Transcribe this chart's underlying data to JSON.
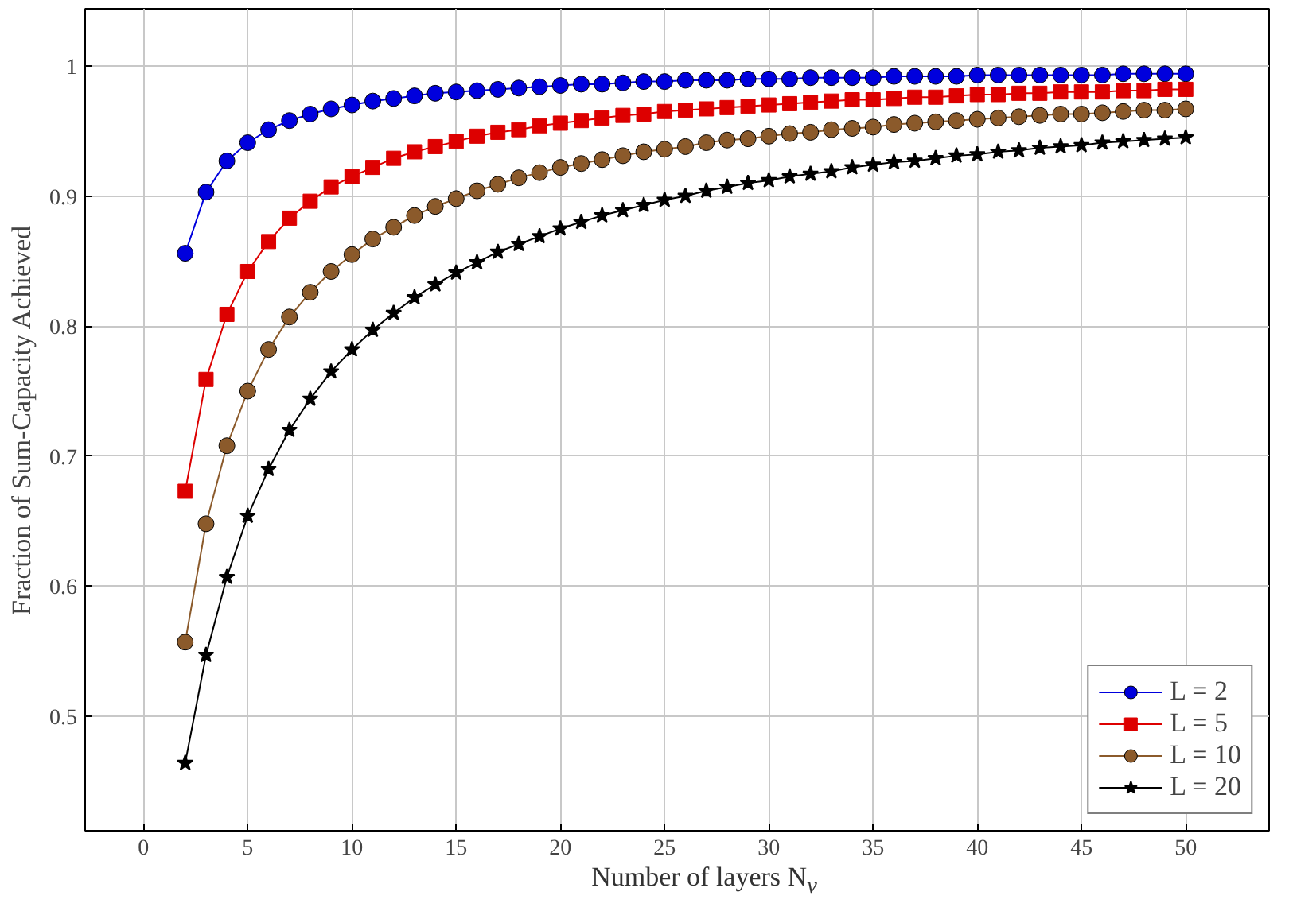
{
  "chart_data": {
    "type": "line",
    "xlabel": "Number of layers N$_{v}$",
    "ylabel": "Fraction of Sum-Capacity Achieved",
    "x": [
      2,
      3,
      4,
      5,
      6,
      7,
      8,
      9,
      10,
      11,
      12,
      13,
      14,
      15,
      16,
      17,
      18,
      19,
      20,
      21,
      22,
      23,
      24,
      25,
      26,
      27,
      28,
      29,
      30,
      31,
      32,
      33,
      34,
      35,
      36,
      37,
      38,
      39,
      40,
      41,
      42,
      43,
      44,
      45,
      46,
      47,
      48,
      49,
      50
    ],
    "xlim": [
      -2.8,
      54
    ],
    "xticks": [
      0,
      5,
      10,
      15,
      20,
      25,
      30,
      35,
      40,
      45,
      50
    ],
    "ylim": [
      0.412,
      1.044
    ],
    "yticks": [
      0.5,
      0.6,
      0.7,
      0.8,
      0.9,
      1
    ],
    "grid": true,
    "legend": "bottom right",
    "series": [
      {
        "name": "L = 2",
        "color": "#0000dd",
        "marker": "circle",
        "values": [
          0.856,
          0.903,
          0.927,
          0.941,
          0.951,
          0.958,
          0.963,
          0.967,
          0.97,
          0.973,
          0.975,
          0.977,
          0.979,
          0.98,
          0.981,
          0.982,
          0.983,
          0.984,
          0.985,
          0.986,
          0.986,
          0.987,
          0.988,
          0.988,
          0.989,
          0.989,
          0.989,
          0.99,
          0.99,
          0.99,
          0.991,
          0.991,
          0.991,
          0.991,
          0.992,
          0.992,
          0.992,
          0.992,
          0.993,
          0.993,
          0.993,
          0.993,
          0.993,
          0.993,
          0.993,
          0.994,
          0.994,
          0.994,
          0.994
        ]
      },
      {
        "name": "L = 5",
        "color": "#dd0000",
        "marker": "square",
        "values": [
          0.673,
          0.759,
          0.809,
          0.842,
          0.865,
          0.883,
          0.896,
          0.907,
          0.915,
          0.922,
          0.929,
          0.934,
          0.938,
          0.942,
          0.946,
          0.949,
          0.951,
          0.954,
          0.956,
          0.958,
          0.96,
          0.962,
          0.963,
          0.965,
          0.966,
          0.967,
          0.968,
          0.969,
          0.97,
          0.971,
          0.972,
          0.973,
          0.974,
          0.974,
          0.975,
          0.976,
          0.976,
          0.977,
          0.978,
          0.978,
          0.979,
          0.979,
          0.98,
          0.98,
          0.98,
          0.981,
          0.981,
          0.982,
          0.982
        ]
      },
      {
        "name": "L = 10",
        "color": "#8b5a2b",
        "marker": "circle",
        "values": [
          0.557,
          0.648,
          0.708,
          0.75,
          0.782,
          0.807,
          0.826,
          0.842,
          0.855,
          0.867,
          0.876,
          0.885,
          0.892,
          0.898,
          0.904,
          0.909,
          0.914,
          0.918,
          0.922,
          0.925,
          0.928,
          0.931,
          0.934,
          0.936,
          0.938,
          0.941,
          0.943,
          0.944,
          0.946,
          0.948,
          0.949,
          0.951,
          0.952,
          0.953,
          0.955,
          0.956,
          0.957,
          0.958,
          0.959,
          0.96,
          0.961,
          0.962,
          0.963,
          0.963,
          0.964,
          0.965,
          0.966,
          0.966,
          0.967
        ]
      },
      {
        "name": "L = 20",
        "color": "#000000",
        "marker": "star",
        "values": [
          0.464,
          0.547,
          0.607,
          0.654,
          0.69,
          0.72,
          0.744,
          0.765,
          0.782,
          0.797,
          0.81,
          0.822,
          0.832,
          0.841,
          0.849,
          0.857,
          0.863,
          0.869,
          0.875,
          0.88,
          0.885,
          0.889,
          0.893,
          0.897,
          0.9,
          0.904,
          0.907,
          0.91,
          0.912,
          0.915,
          0.917,
          0.919,
          0.922,
          0.924,
          0.926,
          0.927,
          0.929,
          0.931,
          0.932,
          0.934,
          0.935,
          0.937,
          0.938,
          0.939,
          0.941,
          0.942,
          0.943,
          0.944,
          0.945
        ]
      }
    ]
  }
}
